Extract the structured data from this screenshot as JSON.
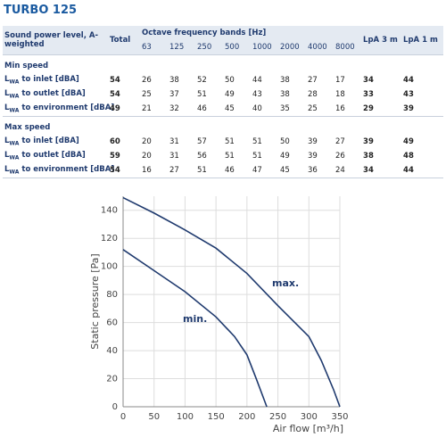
{
  "title": "TURBO 125",
  "table": {
    "header": {
      "label": "Sound power level, A-weighted",
      "total": "Total",
      "bands_title": "Octave frequency bands [Hz]",
      "lpa3": "LpA 3 m",
      "lpa1": "LpA 1 m",
      "bands": [
        63,
        125,
        250,
        500,
        1000,
        2000,
        4000,
        8000
      ]
    },
    "groups": [
      {
        "name": "Min speed",
        "rows": [
          {
            "label": {
              "symbol": "L",
              "sub": "WA",
              "text": " to inlet [dBA]"
            },
            "total": 54,
            "bands": [
              26,
              38,
              52,
              50,
              44,
              38,
              27,
              17
            ],
            "lpa3": 34,
            "lpa1": 44
          },
          {
            "label": {
              "symbol": "L",
              "sub": "WA",
              "text": " to outlet [dBA]"
            },
            "total": 54,
            "bands": [
              25,
              37,
              51,
              49,
              43,
              38,
              28,
              18
            ],
            "lpa3": 33,
            "lpa1": 43
          },
          {
            "label": {
              "symbol": "L",
              "sub": "WA",
              "text": " to environment [dBA]"
            },
            "total": 49,
            "bands": [
              21,
              32,
              46,
              45,
              40,
              35,
              25,
              16
            ],
            "lpa3": 29,
            "lpa1": 39
          }
        ]
      },
      {
        "name": "Max speed",
        "rows": [
          {
            "label": {
              "symbol": "L",
              "sub": "WA",
              "text": " to inlet [dBA]"
            },
            "total": 60,
            "bands": [
              20,
              31,
              57,
              51,
              51,
              50,
              39,
              27
            ],
            "lpa3": 39,
            "lpa1": 49
          },
          {
            "label": {
              "symbol": "L",
              "sub": "WA",
              "text": " to outlet [dBA]"
            },
            "total": 59,
            "bands": [
              20,
              31,
              56,
              51,
              51,
              49,
              39,
              26
            ],
            "lpa3": 38,
            "lpa1": 48
          },
          {
            "label": {
              "symbol": "L",
              "sub": "WA",
              "text": " to environment [dBA]"
            },
            "total": 54,
            "bands": [
              16,
              27,
              51,
              46,
              47,
              45,
              36,
              24
            ],
            "lpa3": 34,
            "lpa1": 44
          }
        ]
      }
    ]
  },
  "chart_data": {
    "type": "line",
    "x_label": "Air flow [m³/h]",
    "y_label": "Static pressure [Pa]",
    "xlim": [
      0,
      350
    ],
    "ylim": [
      0,
      150
    ],
    "xticks": [
      0,
      50,
      100,
      150,
      200,
      250,
      300,
      350
    ],
    "yticks": [
      0,
      20,
      40,
      60,
      80,
      100,
      120,
      140
    ],
    "grid": true,
    "series": [
      {
        "name": "max.",
        "color": "#1f3a6e",
        "x": [
          0,
          50,
          100,
          150,
          200,
          250,
          300,
          320,
          340,
          350
        ],
        "values": [
          149,
          138,
          126,
          113,
          95,
          72,
          50,
          33,
          12,
          0
        ]
      },
      {
        "name": "min.",
        "color": "#1f3a6e",
        "x": [
          0,
          50,
          100,
          150,
          180,
          200,
          215,
          232
        ],
        "values": [
          112,
          97,
          82,
          64,
          50,
          37,
          20,
          0
        ]
      }
    ]
  }
}
